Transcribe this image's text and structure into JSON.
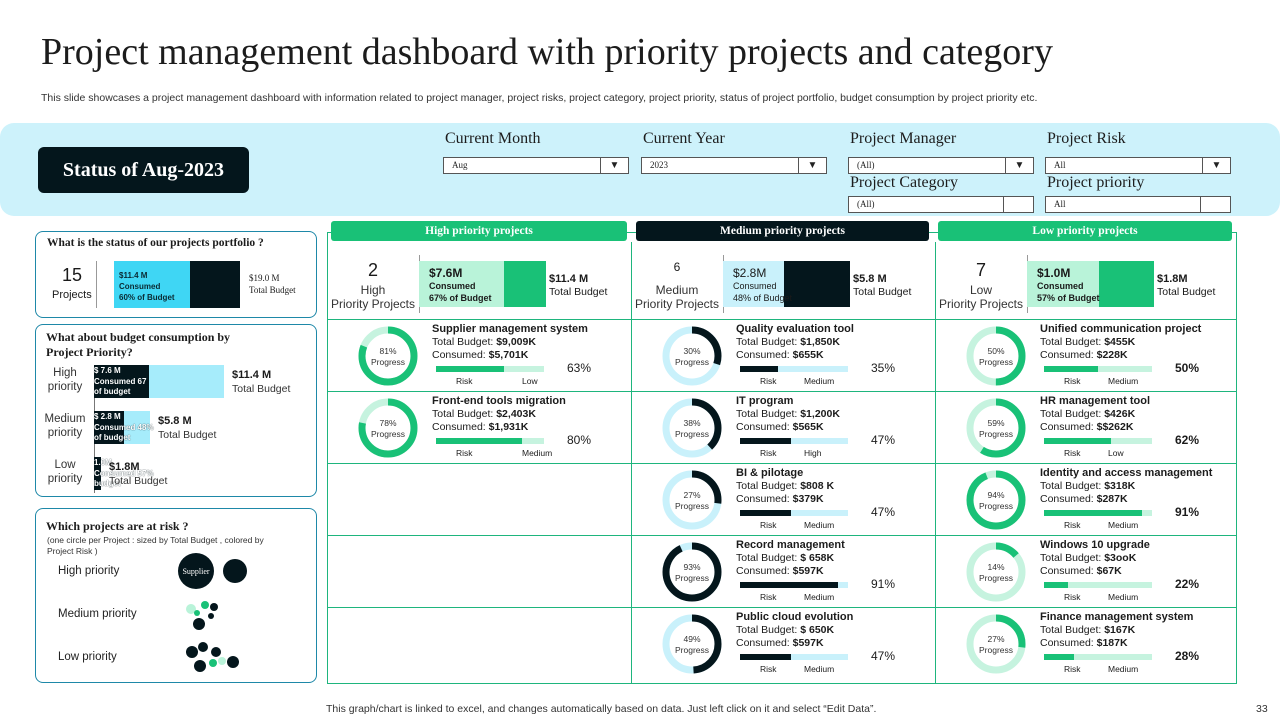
{
  "title": "Project management dashboard with priority projects and category",
  "subtitle": "This slide showcases a project management dashboard with information related to project manager, project risks, project category, project priority,  status of project portfolio, budget consumption by project priority etc.",
  "status_label": "Status of Aug-2023",
  "filters": [
    {
      "label": "Current Month",
      "value": "Aug",
      "dropdown": true
    },
    {
      "label": "Current Year",
      "value": "2023",
      "dropdown": true
    },
    {
      "label": "Project Manager",
      "value": "(All)",
      "dropdown": true
    },
    {
      "label": "Project Risk",
      "value": "All",
      "dropdown": true
    },
    {
      "label": "Project  Category",
      "value": "(All)",
      "dropdown": false
    },
    {
      "label": "Project priority",
      "value": "All",
      "dropdown": false
    }
  ],
  "portfolio": {
    "title": "What is the status of our projects portfolio ?",
    "count": "15",
    "count_label": "Projects",
    "consumed_line1": "$11.4  M",
    "consumed_line2": "Consumed",
    "consumed_line3": "60% of Budget",
    "consumed_fraction": 0.6,
    "total_value": "$19.0 M",
    "total_label": "Total Budget"
  },
  "budget": {
    "title_line1": "What about budget consumption by",
    "title_line2": "Project Priority?",
    "rows": [
      {
        "label1": "High",
        "label2": "priority",
        "c1": "$ 7.6 M",
        "c2": "Consumed 67",
        "c3": "of budget",
        "fraction": 0.67,
        "value": "$11.4  M",
        "total_label": "Total Budget"
      },
      {
        "label1": "Medium",
        "label2": "priority",
        "c1": "$ 2.8  M",
        "c2": "Consumed 48%",
        "c3": "of budget",
        "fraction": 0.48,
        "value": "$5.8 M",
        "total_label": "Total Budget"
      },
      {
        "label1": "Low",
        "label2": "priority",
        "c1": "1.0M",
        "c2": "Consumed 57%",
        "c3": "budget",
        "fraction": 0.57,
        "value": "$1.8M",
        "total_label": "Total Budget"
      }
    ]
  },
  "risk": {
    "title": "Which projects  are at risk  ?",
    "note_line1": "(one circle per Project : sized by Total Budget , colored by",
    "note_line2": "Project Risk )",
    "rows": [
      "High priority",
      "Medium priority",
      "Low priority"
    ],
    "bubble_label": "Supplier"
  },
  "columns": [
    {
      "header": "High priority projects",
      "header_color": "#19c177",
      "count": "2",
      "count_l1": "High",
      "count_l2": "Priority Projects",
      "cons_value": "$7.6M",
      "cons_l1": "Consumed",
      "cons_l2": "67% of Budget",
      "cons_fraction": 0.67,
      "total_value": "$11.4 M",
      "total_label": "Total Budget",
      "ring_color": "#19c177",
      "projects": [
        {
          "name": "Supplier management system",
          "budget_label": "Total Budget: ",
          "budget": "$9,009K",
          "consumed_label": "Consumed: ",
          "consumed": "$5,701K",
          "progress": 81,
          "progress_text": "81%",
          "progress_word": "Progress",
          "risk_label": "Risk",
          "risk": "Low",
          "pct": "63%",
          "pct_value": 63
        },
        {
          "name": "Front-end tools migration",
          "budget_label": "Total Budget: ",
          "budget": "$2,403K",
          "consumed_label": "Consumed: ",
          "consumed": "$1,931K",
          "progress": 78,
          "progress_text": "78%",
          "progress_word": "Progress",
          "risk_label": "Risk",
          "risk": "Medium",
          "pct": "80%",
          "pct_value": 80
        }
      ]
    },
    {
      "header": "Medium priority projects",
      "header_color": "#04161c",
      "count": "6",
      "count_l1": "Medium",
      "count_l2": "Priority Projects",
      "cons_value": "$2.8M",
      "cons_l1": "Consumed",
      "cons_l2": "48% of Budget",
      "cons_fraction": 0.48,
      "total_value": "$5.8 M",
      "total_label": "Total Budget",
      "ring_color": "#04161c",
      "projects": [
        {
          "name": "Quality evaluation tool",
          "budget_label": "Total Budget: ",
          "budget": "$1,850K",
          "consumed_label": "Consumed: ",
          "consumed": "$655K",
          "progress": 30,
          "progress_text": "30%",
          "progress_word": "Progress",
          "risk_label": "Risk",
          "risk": "Medium",
          "pct": "35%",
          "pct_value": 35
        },
        {
          "name": "IT program",
          "budget_label": "Total Budget: ",
          "budget": "$1,200K",
          "consumed_label": "Consumed: ",
          "consumed": "$565K",
          "progress": 38,
          "progress_text": "38%",
          "progress_word": "Progress",
          "risk_label": "Risk",
          "risk": "High",
          "pct": "47%",
          "pct_value": 47
        },
        {
          "name": "BI & pilotage",
          "budget_label": "Total Budget: ",
          "budget": "$808 K",
          "consumed_label": "Consumed: ",
          "consumed": "$379K",
          "progress": 27,
          "progress_text": "27%",
          "progress_word": "Progress",
          "risk_label": "Risk",
          "risk": "Medium",
          "pct": "47%",
          "pct_value": 47
        },
        {
          "name": "Record management",
          "budget_label": "Total Budget: ",
          "budget": "$ 658K",
          "consumed_label": "Consumed: ",
          "consumed": "$597K",
          "progress": 93,
          "progress_text": "93%",
          "progress_word": "Progress",
          "risk_label": "Risk",
          "risk": "Medium",
          "pct": "91%",
          "pct_value": 91
        },
        {
          "name": "Public cloud evolution",
          "budget_label": "Total Budget: ",
          "budget": "$ 650K",
          "consumed_label": "Consumed: ",
          "consumed": "$597K",
          "progress": 49,
          "progress_text": "49%",
          "progress_word": "Progress",
          "risk_label": "Risk",
          "risk": "Medium",
          "pct": "47%",
          "pct_value": 47
        }
      ]
    },
    {
      "header": "Low priority projects",
      "header_color": "#19c177",
      "count": "7",
      "count_l1": "Low",
      "count_l2": "Priority Projects",
      "cons_value": "$1.0M",
      "cons_l1": "Consumed",
      "cons_l2": "57% of Budget",
      "cons_fraction": 0.57,
      "total_value": "$1.8M",
      "total_label": "Total Budget",
      "ring_color": "#19c177",
      "projects": [
        {
          "name": "Unified communication project",
          "budget_label": "Total Budget: ",
          "budget": "$455K",
          "consumed_label": "Consumed: ",
          "consumed": "$228K",
          "progress": 50,
          "progress_text": "50%",
          "progress_word": "Progress",
          "risk_label": "Risk",
          "risk": "Medium",
          "pct": "50%",
          "pct_value": 50
        },
        {
          "name": "HR management tool",
          "budget_label": "Total Budget: ",
          "budget": "$426K",
          "consumed_label": "Consumed: ",
          "consumed": "$$262K",
          "progress": 59,
          "progress_text": "59%",
          "progress_word": "Progress",
          "risk_label": "Risk",
          "risk": "Low",
          "pct": "62%",
          "pct_value": 62
        },
        {
          "name": "Identity and access management",
          "budget_label": "Total Budget: ",
          "budget": "$318K",
          "consumed_label": "Consumed: ",
          "consumed": "$287K",
          "progress": 94,
          "progress_text": "94%",
          "progress_word": "Progress",
          "risk_label": "Risk",
          "risk": "Medium",
          "pct": "91%",
          "pct_value": 91
        },
        {
          "name": "Windows 10 upgrade",
          "budget_label": "Total Budget: ",
          "budget": "$3ooK",
          "consumed_label": "Consumed: ",
          "consumed": "$67K",
          "progress": 14,
          "progress_text": "14%",
          "progress_word": "Progress",
          "risk_label": "Risk",
          "risk": "Medium",
          "pct": "22%",
          "pct_value": 22
        },
        {
          "name": "Finance management system",
          "budget_label": "Total Budget: ",
          "budget": "$167K",
          "consumed_label": "Consumed: ",
          "consumed": "$187K",
          "progress": 27,
          "progress_text": "27%",
          "progress_word": "Progress",
          "risk_label": "Risk",
          "risk": "Medium",
          "pct": "28%",
          "pct_value": 28
        }
      ]
    }
  ],
  "footer": "This graph/chart is linked to excel,  and changes automatically based on data. Just left click on it and select “Edit Data”.",
  "page_number": "33",
  "colors": {
    "green": "#19c177",
    "dark": "#04161c",
    "cyan": "#3fd6f4",
    "light_cyan": "#cdf2fb",
    "light_green": "#b9f3d9",
    "pale_cyan": "#c9f1fb"
  }
}
